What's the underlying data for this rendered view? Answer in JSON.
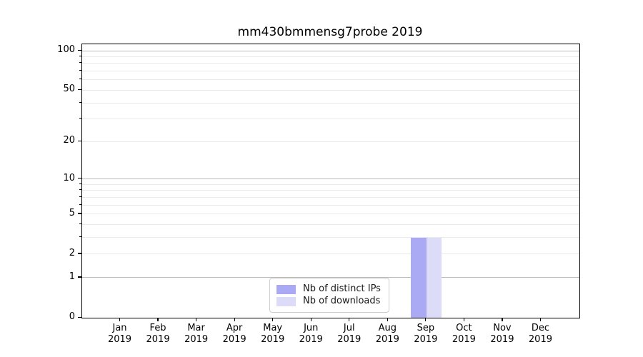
{
  "figure": {
    "title": "mm430bmmensg7probe 2019"
  },
  "chart_data": {
    "type": "bar",
    "title": "mm430bmmensg7probe 2019",
    "categories": [
      "Jan",
      "Feb",
      "Mar",
      "Apr",
      "May",
      "Jun",
      "Jul",
      "Aug",
      "Sep",
      "Oct",
      "Nov",
      "Dec"
    ],
    "category_year": "2019",
    "series": [
      {
        "name": "Nb of distinct IPs",
        "color": "#aaaaf4",
        "values": [
          0,
          0,
          0,
          0,
          0,
          0,
          0,
          0,
          3,
          0,
          0,
          0
        ]
      },
      {
        "name": "Nb of downloads",
        "color": "#dcdcf9",
        "values": [
          0,
          0,
          0,
          0,
          0,
          0,
          0,
          0,
          3,
          0,
          0,
          0
        ]
      }
    ],
    "xlabel": "",
    "ylabel": "",
    "yscale": "log10(1+x)",
    "ylim": [
      0,
      112
    ],
    "ytick_values": [
      0,
      1,
      2,
      5,
      10,
      20,
      50,
      100
    ],
    "ytick_labels": [
      "0",
      "1",
      "2",
      "5",
      "10",
      "20",
      "50",
      "100"
    ],
    "y_major_gridlines": [
      1,
      10,
      100
    ],
    "y_minor_gridlines": [
      2,
      3,
      4,
      5,
      6,
      7,
      8,
      9,
      20,
      30,
      40,
      50,
      60,
      70,
      80,
      90
    ],
    "grid": true,
    "legend": {
      "position": "inside-bottom-center",
      "entries": [
        "Nb of distinct IPs",
        "Nb of downloads"
      ]
    }
  },
  "colors": {
    "major_grid": "#bbbbbb",
    "minor_grid": "#e9e9e9",
    "spine": "#000000",
    "legend_border": "#cccccc",
    "legend_background": "#ffffff",
    "text": "#000000"
  }
}
